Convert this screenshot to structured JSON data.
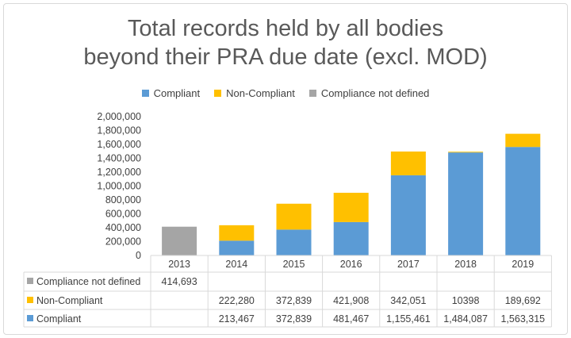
{
  "chart_data": {
    "type": "bar",
    "stacked": true,
    "title": "Total records held by all bodies beyond their PRA due date (excl. MOD)",
    "title_lines": [
      "Total records held by all bodies",
      "beyond their PRA due date (excl. MOD)"
    ],
    "categories": [
      "2013",
      "2014",
      "2015",
      "2016",
      "2017",
      "2018",
      "2019"
    ],
    "series": [
      {
        "name": "Compliant",
        "color": "#5b9bd5",
        "values": [
          null,
          213467,
          372839,
          481467,
          1155461,
          1484087,
          1563315
        ],
        "labels": [
          "",
          "213,467",
          "372,839",
          "481,467",
          "1,155,461",
          "1,484,087",
          "1,563,315"
        ]
      },
      {
        "name": "Non-Compliant",
        "color": "#ffc000",
        "values": [
          null,
          222280,
          372839,
          421908,
          342051,
          10398,
          189692
        ],
        "labels": [
          "",
          "222,280",
          "372,839",
          "421,908",
          "342,051",
          "10398",
          "189,692"
        ]
      },
      {
        "name": "Compliance not defined",
        "color": "#a5a5a5",
        "values": [
          414693,
          null,
          null,
          null,
          null,
          null,
          null
        ],
        "labels": [
          "414,693",
          "",
          "",
          "",
          "",
          "",
          ""
        ]
      }
    ],
    "ylim": [
      0,
      2000000
    ],
    "yticks": [
      "0",
      "200,000",
      "400,000",
      "600,000",
      "800,000",
      "1,000,000",
      "1,200,000",
      "1,400,000",
      "1,600,000",
      "1,800,000",
      "2,000,000"
    ],
    "legend": "top",
    "grid": false,
    "data_table": true
  }
}
